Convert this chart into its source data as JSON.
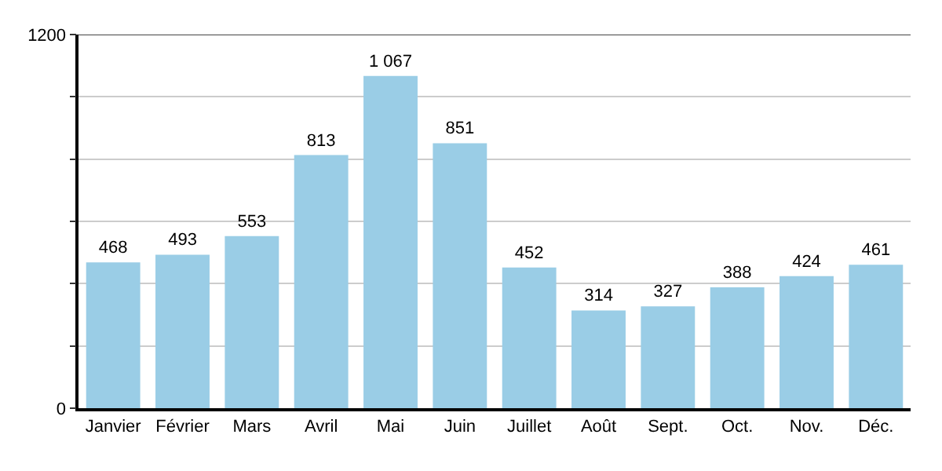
{
  "chart_data": {
    "type": "bar",
    "categories": [
      "Janvier",
      "Février",
      "Mars",
      "Avril",
      "Mai",
      "Juin",
      "Juillet",
      "Août",
      "Sept.",
      "Oct.",
      "Nov.",
      "Déc."
    ],
    "values": [
      468,
      493,
      553,
      813,
      1067,
      851,
      452,
      314,
      327,
      388,
      424,
      461
    ],
    "value_labels": [
      "468",
      "493",
      "553",
      "813",
      "1 067",
      "851",
      "452",
      "314",
      "327",
      "388",
      "424",
      "461"
    ],
    "color": "#9acde6",
    "ylim": [
      0,
      1200
    ],
    "yticks": [
      0,
      {
        "value": 200,
        "label": null
      },
      {
        "value": 400,
        "label": null
      },
      {
        "value": 600,
        "label": null
      },
      {
        "value": 800,
        "label": null
      },
      {
        "value": 1000,
        "label": null
      },
      1200
    ],
    "grid": "y"
  }
}
